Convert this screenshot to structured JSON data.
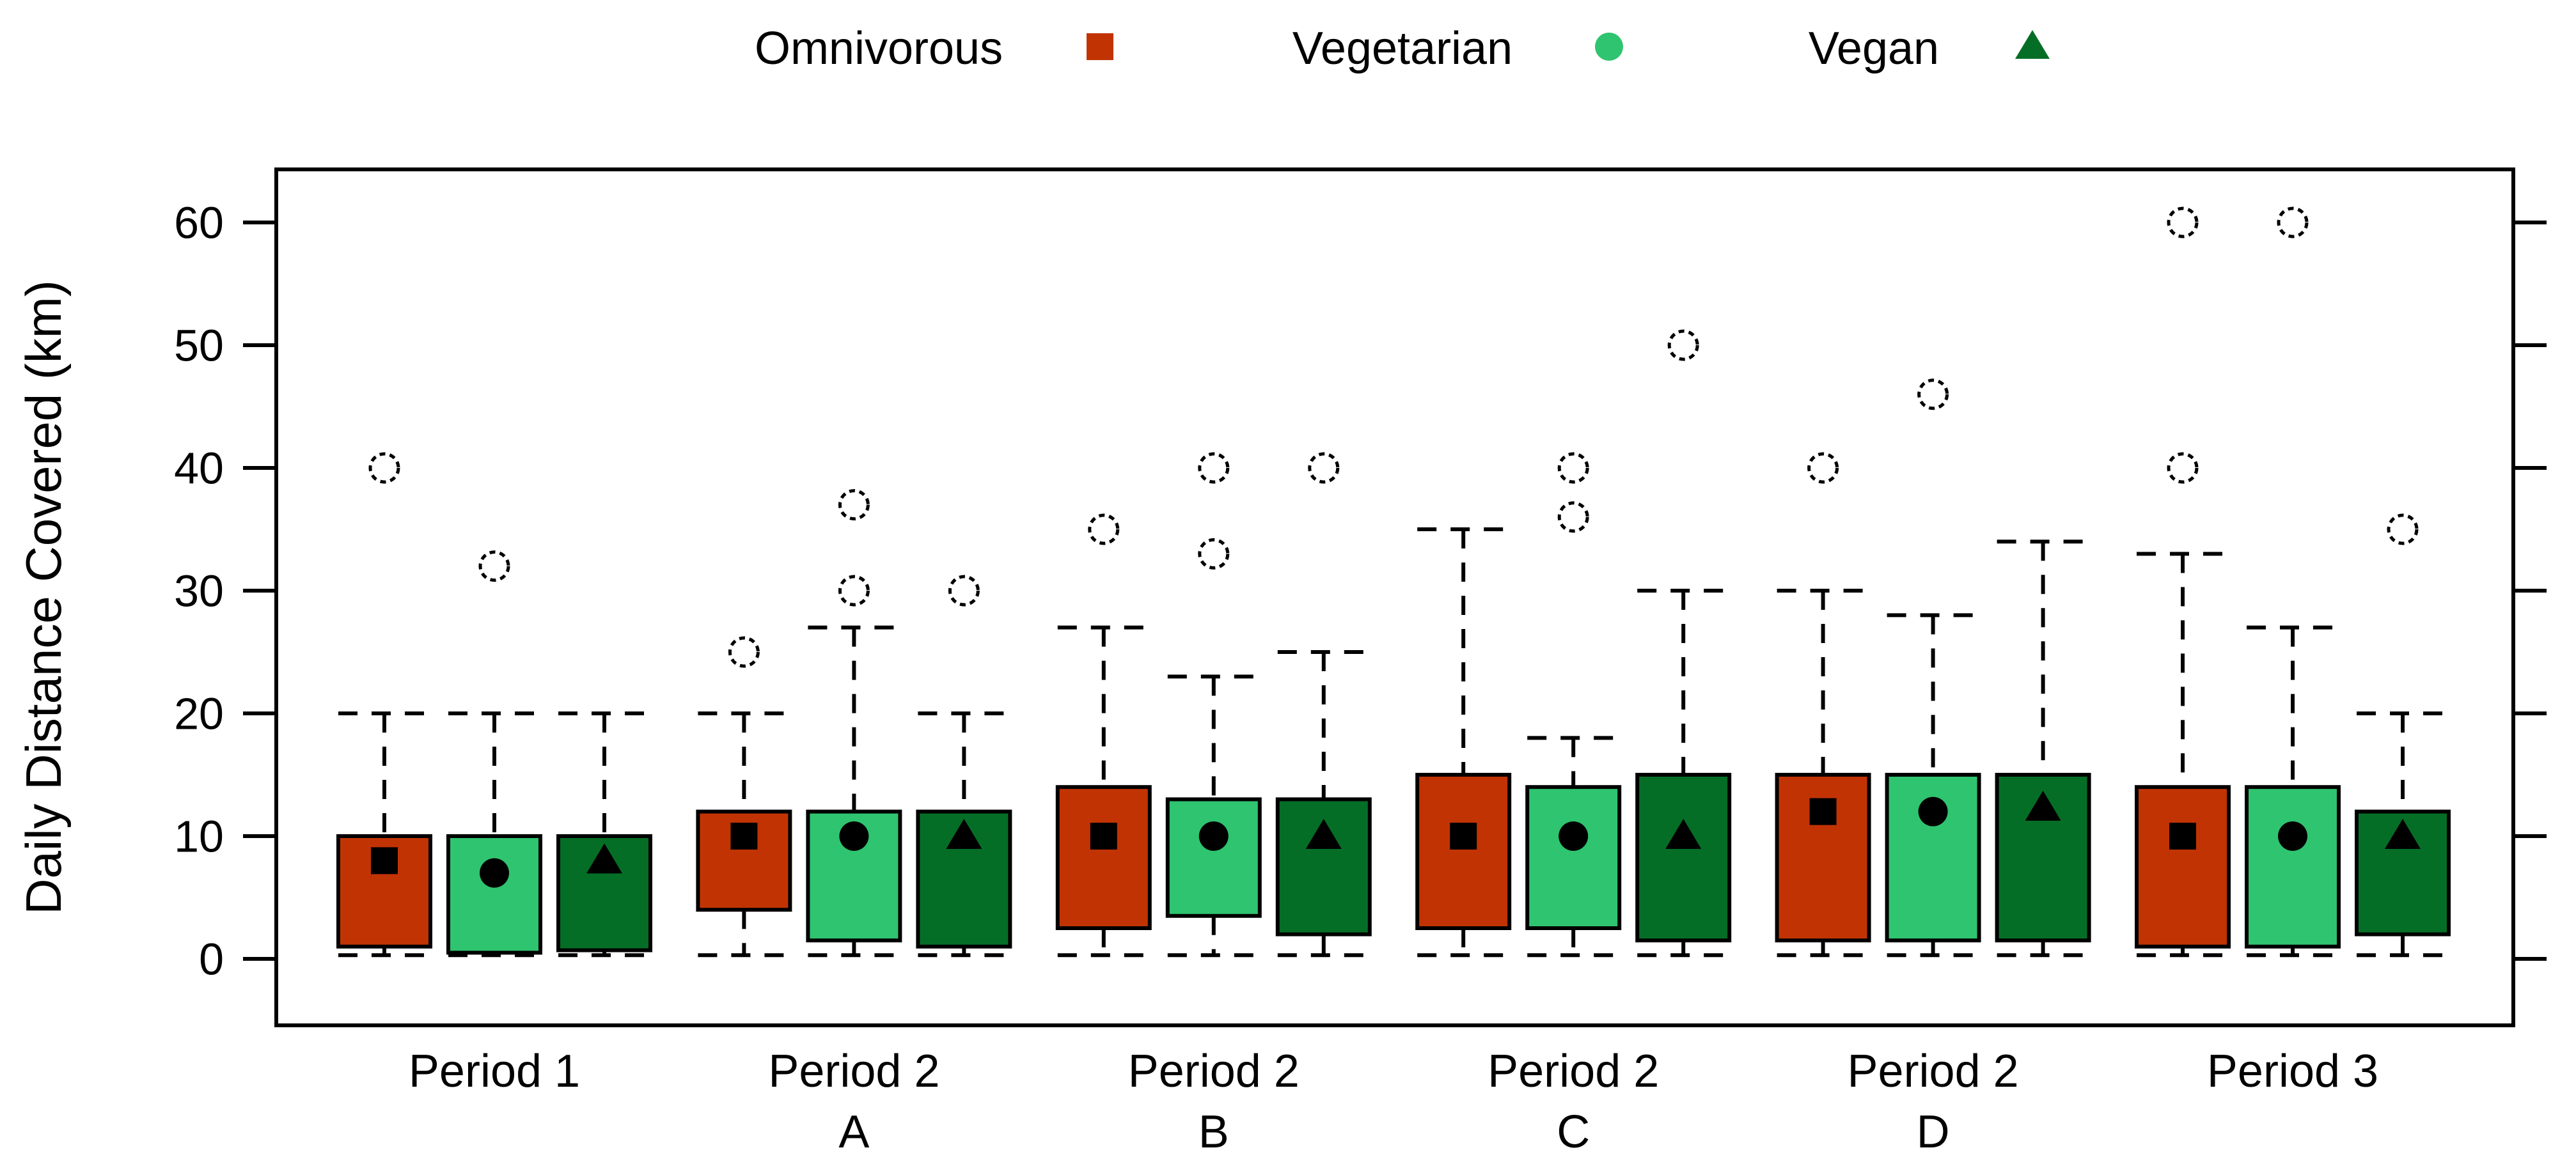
{
  "figure": {
    "description": "Grouped boxplot of daily distance covered by diet group across study periods"
  },
  "chart_data": {
    "type": "box",
    "title": "",
    "xlabel": "",
    "ylabel": "Daily Distance Covered (km)",
    "ylim": [
      0,
      60
    ],
    "yticks": [
      0,
      10,
      20,
      30,
      40,
      50,
      60
    ],
    "grid": false,
    "legend_position": "top-center",
    "style": {
      "whisker_linetype": "dashed",
      "median_line": false,
      "mean_marker_color": "#000000",
      "outlier_marker": "open-circle-dashed",
      "box_border_color": "#000000"
    },
    "groups": [
      {
        "label": "Period 1",
        "sublabel": ""
      },
      {
        "label": "Period 2",
        "sublabel": "A"
      },
      {
        "label": "Period 2",
        "sublabel": "B"
      },
      {
        "label": "Period 2",
        "sublabel": "C"
      },
      {
        "label": "Period 2",
        "sublabel": "D"
      },
      {
        "label": "Period 3",
        "sublabel": ""
      }
    ],
    "series": [
      {
        "name": "Omnivorous",
        "color": "#C23304",
        "marker": "square",
        "boxes": [
          {
            "q1": 1.0,
            "q3": 10,
            "whisker_low": 0.3,
            "whisker_high": 20,
            "mean": 8,
            "outliers": [
              40
            ]
          },
          {
            "q1": 4.0,
            "q3": 12,
            "whisker_low": 0.3,
            "whisker_high": 20,
            "mean": 10,
            "outliers": [
              25
            ]
          },
          {
            "q1": 2.5,
            "q3": 14,
            "whisker_low": 0.3,
            "whisker_high": 27,
            "mean": 10,
            "outliers": [
              35
            ]
          },
          {
            "q1": 2.5,
            "q3": 15,
            "whisker_low": 0.3,
            "whisker_high": 35,
            "mean": 10,
            "outliers": []
          },
          {
            "q1": 1.5,
            "q3": 15,
            "whisker_low": 0.3,
            "whisker_high": 30,
            "mean": 12,
            "outliers": [
              40
            ]
          },
          {
            "q1": 1.0,
            "q3": 14,
            "whisker_low": 0.3,
            "whisker_high": 33,
            "mean": 10,
            "outliers": [
              40,
              60
            ]
          }
        ]
      },
      {
        "name": "Vegetarian",
        "color": "#2FC46F",
        "marker": "circle",
        "boxes": [
          {
            "q1": 0.5,
            "q3": 10,
            "whisker_low": 0.3,
            "whisker_high": 20,
            "mean": 7,
            "outliers": [
              32
            ]
          },
          {
            "q1": 1.5,
            "q3": 12,
            "whisker_low": 0.3,
            "whisker_high": 27,
            "mean": 10,
            "outliers": [
              30,
              37
            ]
          },
          {
            "q1": 3.5,
            "q3": 13,
            "whisker_low": 0.3,
            "whisker_high": 23,
            "mean": 10,
            "outliers": [
              33,
              40
            ]
          },
          {
            "q1": 2.5,
            "q3": 14,
            "whisker_low": 0.3,
            "whisker_high": 18,
            "mean": 10,
            "outliers": [
              36,
              40
            ]
          },
          {
            "q1": 1.5,
            "q3": 15,
            "whisker_low": 0.3,
            "whisker_high": 28,
            "mean": 12,
            "outliers": [
              46
            ]
          },
          {
            "q1": 1.0,
            "q3": 14,
            "whisker_low": 0.3,
            "whisker_high": 27,
            "mean": 10,
            "outliers": [
              60
            ]
          }
        ]
      },
      {
        "name": "Vegan",
        "color": "#056E26",
        "marker": "triangle",
        "boxes": [
          {
            "q1": 0.7,
            "q3": 10,
            "whisker_low": 0.3,
            "whisker_high": 20,
            "mean": 8,
            "outliers": []
          },
          {
            "q1": 1.0,
            "q3": 12,
            "whisker_low": 0.3,
            "whisker_high": 20,
            "mean": 10,
            "outliers": [
              30
            ]
          },
          {
            "q1": 2.0,
            "q3": 13,
            "whisker_low": 0.3,
            "whisker_high": 25,
            "mean": 10,
            "outliers": [
              40
            ]
          },
          {
            "q1": 1.5,
            "q3": 15,
            "whisker_low": 0.3,
            "whisker_high": 30,
            "mean": 10,
            "outliers": [
              50
            ]
          },
          {
            "q1": 1.5,
            "q3": 15,
            "whisker_low": 0.3,
            "whisker_high": 34,
            "mean": 12.3,
            "outliers": []
          },
          {
            "q1": 2.0,
            "q3": 12,
            "whisker_low": 0.3,
            "whisker_high": 20,
            "mean": 10,
            "outliers": [
              35
            ]
          }
        ]
      }
    ]
  }
}
